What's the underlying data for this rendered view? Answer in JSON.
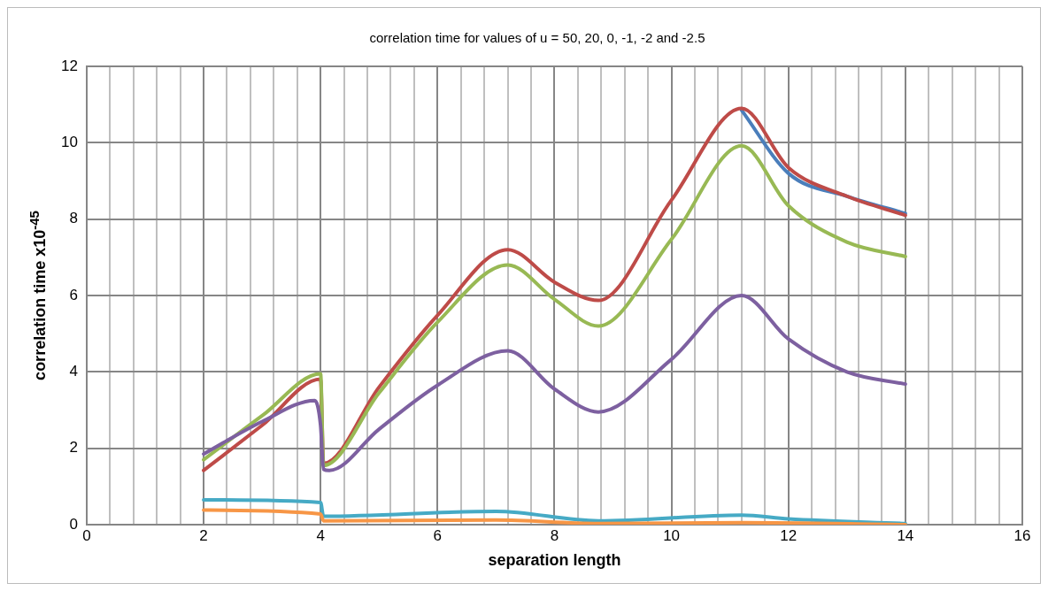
{
  "chart_data": {
    "type": "line",
    "title": "correlation time for values of u = 50, 20, 0, -1, -2 and -2.5",
    "xlabel": "separation length",
    "ylabel": "correlation time  x10$^{-45}$",
    "xlim": [
      0,
      16
    ],
    "ylim": [
      0,
      12
    ],
    "xticks": [
      0,
      {
        "value": 0.4,
        "label": null
      },
      {
        "value": 0.8,
        "label": null
      },
      {
        "value": 1.2,
        "label": null
      },
      {
        "value": 1.6,
        "label": null
      },
      2,
      {
        "value": 2.4,
        "label": null
      },
      {
        "value": 2.8,
        "label": null
      },
      {
        "value": 3.2,
        "label": null
      },
      {
        "value": 3.6,
        "label": null
      },
      4,
      {
        "value": 4.4,
        "label": null
      },
      {
        "value": 4.8,
        "label": null
      },
      {
        "value": 5.2,
        "label": null
      },
      {
        "value": 5.6,
        "label": null
      },
      6,
      {
        "value": 6.4,
        "label": null
      },
      {
        "value": 6.8,
        "label": null
      },
      {
        "value": 7.2,
        "label": null
      },
      {
        "value": 7.6,
        "label": null
      },
      8,
      {
        "value": 8.4,
        "label": null
      },
      {
        "value": 8.8,
        "label": null
      },
      {
        "value": 9.2,
        "label": null
      },
      {
        "value": 9.6,
        "label": null
      },
      10,
      {
        "value": 10.4,
        "label": null
      },
      {
        "value": 10.8,
        "label": null
      },
      {
        "value": 11.2,
        "label": null
      },
      {
        "value": 11.6,
        "label": null
      },
      12,
      {
        "value": 12.4,
        "label": null
      },
      {
        "value": 12.8,
        "label": null
      },
      {
        "value": 13.2,
        "label": null
      },
      {
        "value": 13.6,
        "label": null
      },
      14,
      {
        "value": 14.4,
        "label": null
      },
      {
        "value": 14.8,
        "label": null
      },
      {
        "value": 15.2,
        "label": null
      },
      {
        "value": 15.6,
        "label": null
      },
      16
    ],
    "yticks": [
      0,
      2,
      4,
      6,
      8,
      10,
      12
    ],
    "grid": true,
    "marker": "none",
    "line_style": "solid",
    "series": [
      {
        "color": "#4a7ebb",
        "x": [
          11.2,
          12,
          13,
          14
        ],
        "values": [
          10.85,
          9.2,
          8.6,
          8.15
        ]
      },
      {
        "color": "#be4b48",
        "x": [
          2,
          3,
          4,
          4.05,
          5,
          6,
          7.2,
          8,
          8.75,
          10,
          11.2,
          12,
          13,
          14
        ],
        "values": [
          1.42,
          2.6,
          3.81,
          1.6,
          3.6,
          5.48,
          7.2,
          6.35,
          5.87,
          8.5,
          10.9,
          9.35,
          8.6,
          8.1
        ]
      },
      {
        "color": "#98b954",
        "x": [
          2,
          3,
          4,
          4.05,
          5,
          6,
          7.2,
          8,
          8.75,
          10,
          11.2,
          12,
          13,
          14
        ],
        "values": [
          1.7,
          2.85,
          3.95,
          1.55,
          3.45,
          5.3,
          6.8,
          5.9,
          5.2,
          7.47,
          9.92,
          8.35,
          7.4,
          7.02
        ]
      },
      {
        "color": "#7d60a0",
        "x": [
          2,
          3,
          3.9,
          4,
          4.05,
          4.15,
          5,
          6,
          7.2,
          8,
          8.75,
          10,
          11.2,
          12,
          13,
          14
        ],
        "values": [
          1.85,
          2.7,
          3.25,
          2.6,
          1.45,
          1.42,
          2.5,
          3.65,
          4.55,
          3.55,
          2.95,
          4.33,
          6.0,
          4.86,
          4.0,
          3.68
        ]
      },
      {
        "color": "#46aac5",
        "x": [
          2,
          4,
          4.05,
          7,
          8.75,
          11.2,
          12,
          14
        ],
        "values": [
          0.65,
          0.58,
          0.22,
          0.35,
          0.1,
          0.25,
          0.15,
          0.03
        ]
      },
      {
        "color": "#f79646",
        "x": [
          2,
          4,
          4.05,
          7,
          8.75,
          11.2,
          14
        ],
        "values": [
          0.38,
          0.28,
          0.1,
          0.12,
          0.03,
          0.05,
          0.0
        ]
      }
    ]
  }
}
